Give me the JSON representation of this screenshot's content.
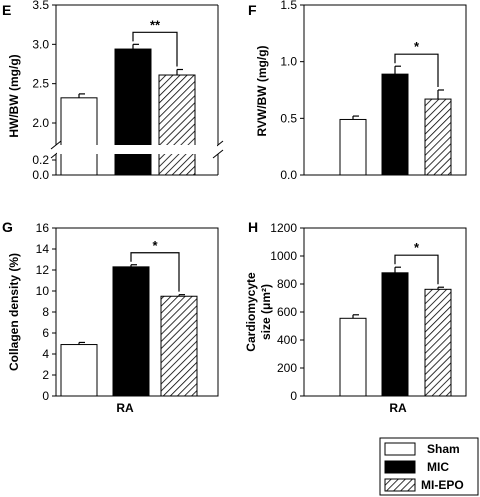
{
  "chart_data": [
    {
      "panel": "E",
      "type": "bar",
      "ylabel": "HW/BW (mg/g)",
      "xlabel": "",
      "ylim": [
        0,
        3.5
      ],
      "axis_break": [
        0.2,
        1.75
      ],
      "yticks_low": [
        "0.0",
        "0.2"
      ],
      "yticks_high": [
        "2.0",
        "2.5",
        "3.0",
        "3.5"
      ],
      "series": [
        {
          "name": "Sham",
          "value": 2.32,
          "error": 0.05
        },
        {
          "name": "MIC",
          "value": 2.94,
          "error": 0.06
        },
        {
          "name": "MI-EPO",
          "value": 2.61,
          "error": 0.07
        }
      ],
      "significance": {
        "from": 1,
        "to": 2,
        "label": "**"
      }
    },
    {
      "panel": "F",
      "type": "bar",
      "ylabel": "RVW/BW (mg/g)",
      "xlabel": "",
      "ylim": [
        0,
        1.5
      ],
      "yticks": [
        "0.0",
        "0.5",
        "1.0",
        "1.5"
      ],
      "series": [
        {
          "name": "Sham",
          "value": 0.49,
          "error": 0.03
        },
        {
          "name": "MIC",
          "value": 0.89,
          "error": 0.07
        },
        {
          "name": "MI-EPO",
          "value": 0.67,
          "error": 0.08
        }
      ],
      "significance": {
        "from": 1,
        "to": 2,
        "label": "*"
      }
    },
    {
      "panel": "G",
      "type": "bar",
      "ylabel": "Collagen density (%)",
      "xlabel": "RA",
      "ylim": [
        0,
        16
      ],
      "yticks": [
        "0",
        "2",
        "4",
        "6",
        "8",
        "10",
        "12",
        "14",
        "16"
      ],
      "series": [
        {
          "name": "Sham",
          "value": 4.9,
          "error": 0.2
        },
        {
          "name": "MIC",
          "value": 12.3,
          "error": 0.2
        },
        {
          "name": "MI-EPO",
          "value": 9.5,
          "error": 0.15
        }
      ],
      "significance": {
        "from": 1,
        "to": 2,
        "label": "*"
      }
    },
    {
      "panel": "H",
      "type": "bar",
      "ylabel_line1": "Cardiomycyte",
      "ylabel_line2": "size (μm²)",
      "xlabel": "RA",
      "ylim": [
        0,
        1200
      ],
      "yticks": [
        "0",
        "200",
        "400",
        "600",
        "800",
        "1000",
        "1200"
      ],
      "series": [
        {
          "name": "Sham",
          "value": 555,
          "error": 25
        },
        {
          "name": "MIC",
          "value": 880,
          "error": 40
        },
        {
          "name": "MI-EPO",
          "value": 762,
          "error": 15
        }
      ],
      "significance": {
        "from": 1,
        "to": 2,
        "label": "*"
      }
    }
  ],
  "legend": {
    "items": [
      {
        "label": "Sham",
        "style": "white"
      },
      {
        "label": "MIC",
        "style": "black"
      },
      {
        "label": "MI-EPO",
        "style": "hatched"
      }
    ]
  },
  "colors": {
    "fill_sham": "#ffffff",
    "fill_mic": "#000000",
    "stroke": "#000000"
  }
}
